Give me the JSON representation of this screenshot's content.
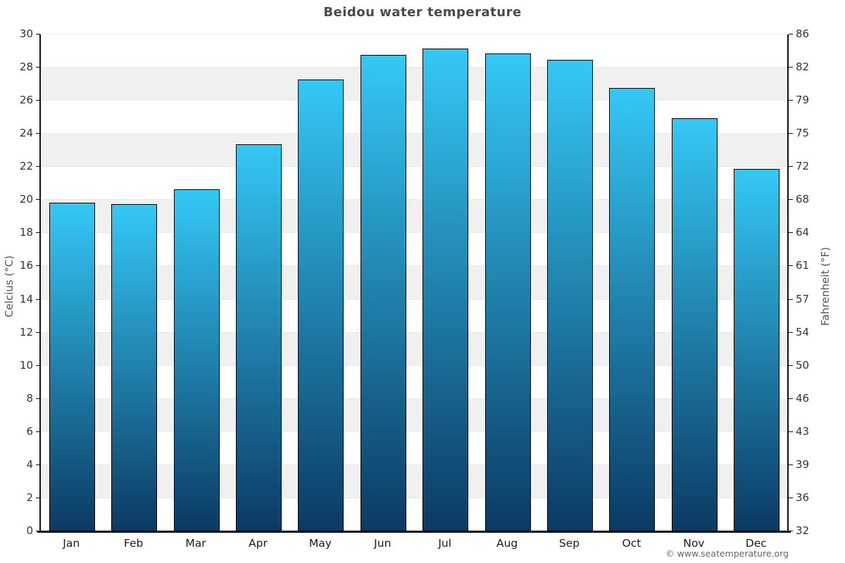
{
  "title": "Beidou water temperature",
  "axes": {
    "left_label": "Celcius (°C)",
    "right_label": "Fahrenheit (°F)"
  },
  "footer": {
    "copyright": "© www.seatemperature.org"
  },
  "chart_data": {
    "type": "bar",
    "title": "Beidou water temperature",
    "categories": [
      "Jan",
      "Feb",
      "Mar",
      "Apr",
      "May",
      "Jun",
      "Jul",
      "Aug",
      "Sep",
      "Oct",
      "Nov",
      "Dec"
    ],
    "values": [
      19.8,
      19.7,
      20.6,
      23.3,
      27.2,
      28.7,
      29.1,
      28.8,
      28.4,
      26.7,
      24.9,
      21.8
    ],
    "unit": "°C",
    "xlabel": "",
    "ylabel_left": "Celcius (°C)",
    "ylabel_right": "Fahrenheit (°F)",
    "ylim": [
      0,
      30
    ],
    "yticks_left": [
      0,
      2,
      4,
      6,
      8,
      10,
      12,
      14,
      16,
      18,
      20,
      22,
      24,
      26,
      28,
      30
    ],
    "yticks_right_labels": [
      "32",
      "36",
      "39",
      "43",
      "46",
      "50",
      "54",
      "57",
      "61",
      "64",
      "68",
      "72",
      "75",
      "79",
      "82",
      "86"
    ],
    "grid": "horizontal gridlines with alternating gray bands every 2°C",
    "legend": "none"
  },
  "colors": {
    "bar_gradient_top": "#35C8F5",
    "bar_gradient_bottom": "#0B3A63",
    "bar_border": "#000000",
    "band_gray": "#F0F0F0",
    "gridline": "#E8E8E8",
    "axis_line": "#111111",
    "baseline": "#000000",
    "title_text": "#4A4A4A",
    "tick_text": "#333333",
    "month_text": "#1A1A1A",
    "axis_label_text": "#555555",
    "copyright_text": "#666666",
    "background": "#FFFFFF"
  }
}
